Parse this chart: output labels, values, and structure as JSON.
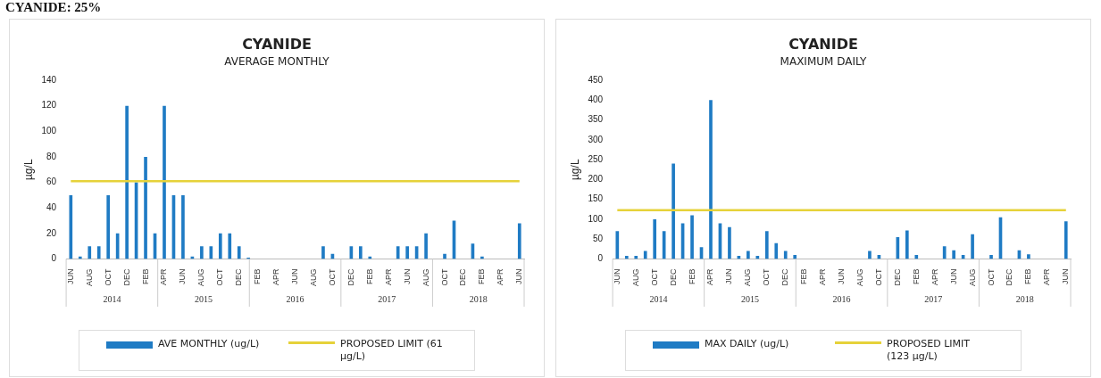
{
  "chart_data": [
    {
      "type": "bar",
      "title": "CYANIDE",
      "subtitle": "AVERAGE MONTHLY",
      "ylabel": "µg/L",
      "categories": [
        "JUN",
        null,
        "AUG",
        null,
        "OCT",
        null,
        "DEC",
        null,
        "FEB",
        null,
        "APR",
        null,
        "JUN",
        null,
        "AUG",
        null,
        "OCT",
        null,
        "DEC",
        null,
        "FEB",
        null,
        "APR",
        null,
        "JUN",
        null,
        "AUG",
        null,
        "OCT",
        null,
        "DEC",
        null,
        "FEB",
        null,
        "APR",
        null,
        "JUN",
        null,
        "AUG",
        null,
        "OCT",
        null,
        "DEC",
        null,
        "FEB",
        null,
        "APR",
        null,
        "JUN"
      ],
      "series": [
        {
          "name": "AVE MONTHLY (ug/L)",
          "color": "#1f7bc4",
          "values": [
            50,
            2,
            10,
            10,
            50,
            20,
            120,
            60,
            80,
            20,
            120,
            50,
            50,
            2,
            10,
            10,
            20,
            20,
            10,
            1,
            null,
            null,
            null,
            null,
            null,
            null,
            null,
            10,
            4,
            null,
            10,
            10,
            2,
            null,
            null,
            10,
            10,
            10,
            20,
            null,
            4,
            30,
            null,
            12,
            2,
            null,
            null,
            null,
            28
          ]
        },
        {
          "name": "PROPOSED LIMIT (61 µg/L)",
          "type": "line",
          "color": "#e6d23a",
          "values": [
            61,
            61,
            61,
            61,
            61,
            61,
            61,
            61,
            61,
            61,
            61,
            61,
            61,
            61,
            61,
            61,
            61,
            61,
            61,
            61,
            61,
            61,
            61,
            61,
            61,
            61,
            61,
            61,
            61,
            61,
            61,
            61,
            61,
            61,
            61,
            61,
            61,
            61,
            61,
            61,
            61,
            61,
            61,
            61,
            61,
            61,
            61,
            61,
            61
          ]
        }
      ],
      "ylim": [
        0,
        140
      ],
      "yticks": [
        0,
        20,
        40,
        60,
        80,
        100,
        120,
        140
      ],
      "grid": false,
      "legend": "bottom",
      "annotations": [
        "CYANIDE: 25%",
        "2014",
        "2015",
        "2016",
        "2017",
        "2018"
      ]
    },
    {
      "type": "bar",
      "title": "CYANIDE",
      "subtitle": "MAXIMUM DAILY",
      "ylabel": "µg/L",
      "categories": [
        "JUN",
        null,
        "AUG",
        null,
        "OCT",
        null,
        "DEC",
        null,
        "FEB",
        null,
        "APR",
        null,
        "JUN",
        null,
        "AUG",
        null,
        "OCT",
        null,
        "DEC",
        null,
        "FEB",
        null,
        "APR",
        null,
        "JUN",
        null,
        "AUG",
        null,
        "OCT",
        null,
        "DEC",
        null,
        "FEB",
        null,
        "APR",
        null,
        "JUN",
        null,
        "AUG",
        null,
        "OCT",
        null,
        "DEC",
        null,
        "FEB",
        null,
        "APR",
        null,
        "JUN"
      ],
      "series": [
        {
          "name": "MAX DAILY (ug/L)",
          "color": "#1f7bc4",
          "values": [
            70,
            8,
            8,
            20,
            100,
            70,
            240,
            90,
            110,
            30,
            400,
            90,
            80,
            8,
            20,
            8,
            70,
            40,
            20,
            10,
            null,
            null,
            null,
            null,
            null,
            null,
            null,
            20,
            10,
            null,
            55,
            72,
            10,
            null,
            null,
            32,
            22,
            10,
            62,
            null,
            10,
            105,
            null,
            22,
            12,
            null,
            null,
            null,
            95
          ]
        },
        {
          "name": "PROPOSED LIMIT (123 µg/L)",
          "type": "line",
          "color": "#e6d23a",
          "values": [
            123,
            123,
            123,
            123,
            123,
            123,
            123,
            123,
            123,
            123,
            123,
            123,
            123,
            123,
            123,
            123,
            123,
            123,
            123,
            123,
            123,
            123,
            123,
            123,
            123,
            123,
            123,
            123,
            123,
            123,
            123,
            123,
            123,
            123,
            123,
            123,
            123,
            123,
            123,
            123,
            123,
            123,
            123,
            123,
            123,
            123,
            123,
            123,
            123
          ]
        }
      ],
      "ylim": [
        0,
        450
      ],
      "yticks": [
        0,
        50,
        100,
        150,
        200,
        250,
        300,
        350,
        400,
        450
      ],
      "grid": false,
      "legend": "bottom",
      "annotations": [
        "2014",
        "2015",
        "2016",
        "2017",
        "2018"
      ]
    }
  ]
}
